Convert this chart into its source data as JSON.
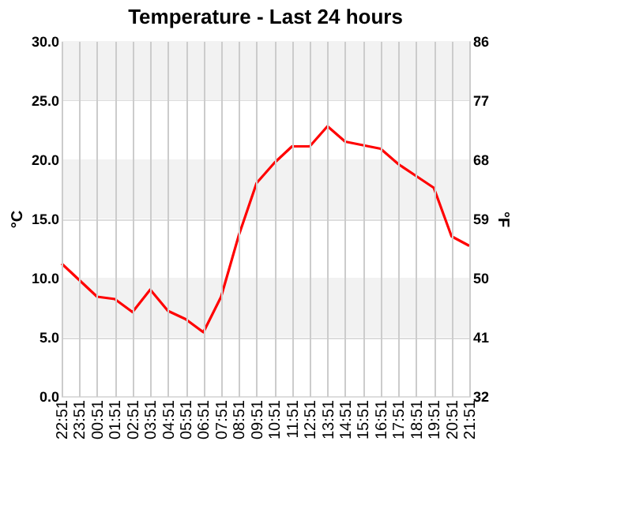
{
  "chart_data": {
    "type": "line",
    "title": "Temperature - Last 24 hours",
    "ylabel": "°C",
    "y2label": "°F",
    "categories": [
      "22:51",
      "23:51",
      "00:51",
      "01:51",
      "02:51",
      "03:51",
      "04:51",
      "05:51",
      "06:51",
      "07:51",
      "08:51",
      "09:51",
      "10:51",
      "11:51",
      "12:51",
      "13:51",
      "14:51",
      "15:51",
      "16:51",
      "17:51",
      "18:51",
      "19:51",
      "20:51",
      "21:51"
    ],
    "series": [
      {
        "color": "#ff0000",
        "values": [
          11.2,
          9.8,
          8.4,
          8.2,
          7.1,
          9.0,
          7.2,
          6.5,
          5.4,
          8.4,
          13.6,
          18.0,
          19.7,
          21.1,
          21.1,
          22.8,
          21.5,
          21.2,
          20.9,
          19.6,
          18.6,
          17.6,
          13.5,
          12.7
        ]
      }
    ],
    "ylim": [
      0,
      30
    ],
    "yticks": [
      {
        "value": 0,
        "label": "0.0"
      },
      {
        "value": 5,
        "label": "5.0"
      },
      {
        "value": 10,
        "label": "10.0"
      },
      {
        "value": 15,
        "label": "15.0"
      },
      {
        "value": 20,
        "label": "20.0"
      },
      {
        "value": 25,
        "label": "25.0"
      },
      {
        "value": 30,
        "label": "30.0"
      }
    ],
    "y2lim": [
      32,
      86
    ],
    "y2ticks": [
      32,
      41,
      50,
      59,
      68,
      77,
      86
    ],
    "bands": [
      {
        "axis": "y",
        "from": 5,
        "to": 10,
        "color": "#f2f2f2"
      },
      {
        "axis": "y",
        "from": 15,
        "to": 20,
        "color": "#f2f2f2"
      },
      {
        "axis": "y",
        "from": 25,
        "to": 30,
        "color": "#f2f2f2"
      }
    ],
    "grid": true,
    "marker": "none",
    "line_style": "solid"
  }
}
